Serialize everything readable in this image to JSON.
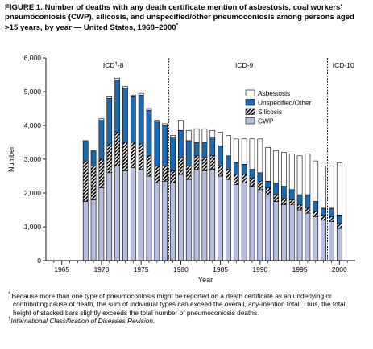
{
  "title": {
    "part1": "FIGURE 1. Number of deaths with any death certificate mention of asbestosis, coal workers' pneumoconiosis (CWP), silicosis, and unspecified/other pneumoconiosis among persons aged ",
    "ge": ">",
    "part2": "15 years, by year — United States, 1968–2000",
    "mark": "*"
  },
  "footnotes": {
    "star_mark": "*",
    "star_text": "Because more than one type of pneumoconiosis might be reported on a death certificate as an underlying or contributing cause of death, the sum of individual types can exceed the overall, any-mention total. Thus, the total height of stacked bars slightly exceeds the total number of pneumoconiosis deaths.",
    "dagger_mark": "†",
    "dagger_text": "International Classification of Diseases Revision."
  },
  "chart_data": {
    "type": "bar",
    "stacked": true,
    "xlabel": "Year",
    "ylabel": "Number",
    "xlim": [
      1963,
      2002
    ],
    "ylim": [
      0,
      6000
    ],
    "y_ticks": [
      0,
      1000,
      2000,
      3000,
      4000,
      5000,
      6000
    ],
    "y_tick_labels": [
      "0",
      "1,000",
      "2,000",
      "3,000",
      "4,000",
      "5,000",
      "6,000"
    ],
    "x_ticks": [
      1965,
      1970,
      1975,
      1980,
      1985,
      1990,
      1995,
      2000
    ],
    "x_tick_labels": [
      "1965",
      "1970",
      "1975",
      "1980",
      "1985",
      "1990",
      "1995",
      "2000"
    ],
    "grid": false,
    "legend_position": "top-right",
    "periods": [
      {
        "label": "ICD",
        "label_mark": "†",
        "label_suffix": "-8",
        "label_x": 1971.5
      },
      {
        "label": "ICD-9",
        "label_mark": "",
        "label_suffix": "",
        "label_x": 1988
      },
      {
        "label": "ICD-10",
        "label_mark": "",
        "label_suffix": "",
        "label_x": 2000.5
      }
    ],
    "period_dividers": [
      1978.5,
      1998.5
    ],
    "categories": [
      1968,
      1969,
      1970,
      1971,
      1972,
      1973,
      1974,
      1975,
      1976,
      1977,
      1978,
      1979,
      1980,
      1981,
      1982,
      1983,
      1984,
      1985,
      1986,
      1987,
      1988,
      1989,
      1990,
      1991,
      1992,
      1993,
      1994,
      1995,
      1996,
      1997,
      1998,
      1999,
      2000
    ],
    "series": [
      {
        "name": "CWP",
        "style": "light-blue",
        "values": [
          1750,
          1800,
          2150,
          2600,
          2800,
          2650,
          2750,
          2700,
          2500,
          2300,
          2350,
          2300,
          2550,
          2400,
          2700,
          2650,
          2700,
          2500,
          2400,
          2250,
          2300,
          2200,
          2100,
          1950,
          1750,
          1650,
          1650,
          1500,
          1400,
          1300,
          1200,
          1150,
          950
        ]
      },
      {
        "name": "Silicosis",
        "style": "hatched",
        "values": [
          1200,
          1000,
          850,
          850,
          1000,
          850,
          750,
          750,
          600,
          500,
          450,
          350,
          500,
          400,
          400,
          400,
          400,
          300,
          300,
          300,
          250,
          250,
          250,
          200,
          200,
          200,
          150,
          150,
          150,
          150,
          150,
          150,
          150
        ]
      },
      {
        "name": "Unspecified/Other",
        "style": "dark-blue",
        "values": [
          600,
          450,
          1150,
          1350,
          1550,
          1600,
          1350,
          1450,
          1350,
          1300,
          1200,
          1000,
          800,
          750,
          400,
          450,
          550,
          600,
          400,
          350,
          300,
          250,
          250,
          200,
          350,
          350,
          300,
          300,
          400,
          300,
          200,
          250,
          250
        ]
      },
      {
        "name": "Asbestosis",
        "style": "white",
        "values": [
          0,
          0,
          50,
          50,
          50,
          50,
          50,
          50,
          50,
          50,
          50,
          50,
          300,
          300,
          400,
          400,
          200,
          400,
          600,
          700,
          750,
          900,
          1000,
          1000,
          950,
          1000,
          1050,
          1150,
          1200,
          1200,
          1250,
          1250,
          1550
        ]
      }
    ]
  }
}
